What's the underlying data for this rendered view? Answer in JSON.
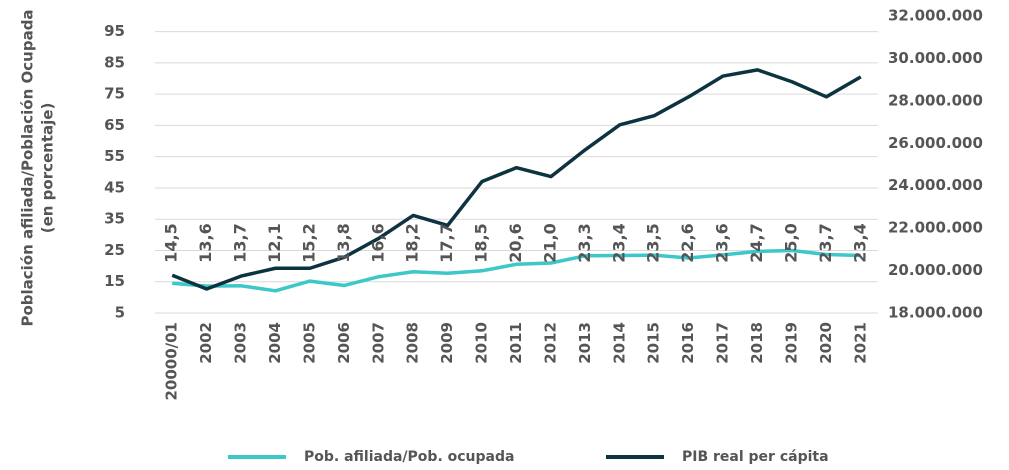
{
  "chart_data": {
    "type": "line",
    "ylabel": [
      "Población afiliada/Población Ocupada",
      "(en porcentaje)"
    ],
    "categories": [
      "20000/01",
      "2002",
      "2003",
      "2004",
      "2005",
      "2006",
      "2007",
      "2008",
      "2009",
      "2010",
      "2011",
      "2012",
      "2013",
      "2014",
      "2015",
      "2016",
      "2017",
      "2018",
      "2019",
      "2020",
      "2021"
    ],
    "series": [
      {
        "name": "Pob. afiliada/Pob. ocupada",
        "color": "#3cc8c8",
        "axis": "y",
        "values": [
          14.5,
          13.6,
          13.7,
          12.1,
          15.2,
          13.8,
          16.6,
          18.2,
          17.7,
          18.5,
          20.6,
          21.0,
          23.3,
          23.4,
          23.5,
          22.6,
          23.6,
          24.7,
          25.0,
          23.7,
          23.4
        ],
        "value_labels": [
          "14,5",
          "13,6",
          "13,7",
          "12,1",
          "15,2",
          "13,8",
          "16,6",
          "18,2",
          "17,7",
          "18,5",
          "20,6",
          "21,0",
          "23,3",
          "23,4",
          "23,5",
          "22,6",
          "23,6",
          "24,7",
          "25,0",
          "23,7",
          "23,4"
        ]
      },
      {
        "name": "PIB real per cápita",
        "color": "#0d3340",
        "axis": "y2",
        "values": [
          19780000,
          19130000,
          19740000,
          20110000,
          20110000,
          20630000,
          21520000,
          22600000,
          22130000,
          24200000,
          24850000,
          24430000,
          25700000,
          26870000,
          27300000,
          28190000,
          29170000,
          29460000,
          28900000,
          28190000,
          29130000
        ]
      }
    ],
    "ylim": [
      5,
      100
    ],
    "yticks": [
      5,
      15,
      25,
      35,
      45,
      55,
      65,
      75,
      85,
      95
    ],
    "y2lim": [
      18000000,
      32000000
    ],
    "y2ticks": [
      {
        "value": 18000000,
        "label": "18.000.000"
      },
      {
        "value": 20000000,
        "label": "20.000.000"
      },
      {
        "value": 22000000,
        "label": "22.000.000"
      },
      {
        "value": 24000000,
        "label": "24.000.000"
      },
      {
        "value": 26000000,
        "label": "26.000.000"
      },
      {
        "value": 28000000,
        "label": "28.000.000"
      },
      {
        "value": 30000000,
        "label": "30.000.000"
      },
      {
        "value": 32000000,
        "label": "32.000.000"
      }
    ],
    "grid": true,
    "legend": "bottom"
  }
}
